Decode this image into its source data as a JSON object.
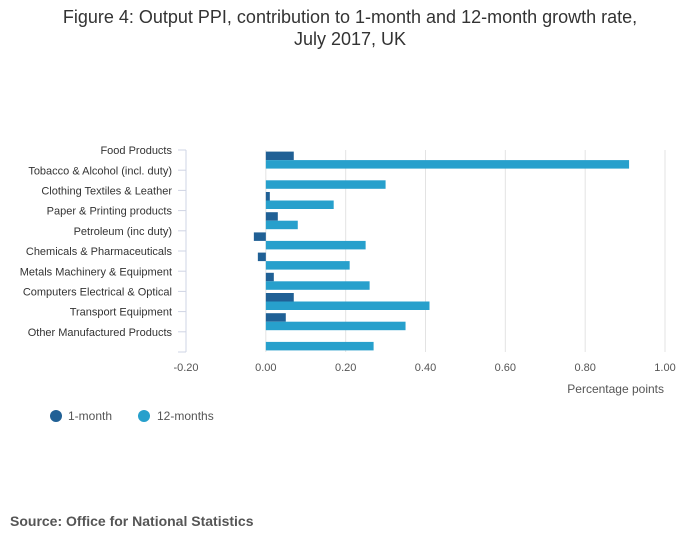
{
  "title_line1": "Figure 4: Output PPI, contribution to 1-month and 12-month growth rate,",
  "title_line2": "July 2017, UK",
  "source": "Source: Office for National Statistics",
  "chart_data": {
    "type": "bar",
    "orientation": "horizontal",
    "title": "Figure 4: Output PPI, contribution to 1-month and 12-month growth rate, July 2017, UK",
    "xlabel": "Percentage points",
    "ylabel": "",
    "xlim": [
      -0.2,
      1.0
    ],
    "xticks": [
      -0.2,
      0.0,
      0.2,
      0.4,
      0.6,
      0.8,
      1.0
    ],
    "xtick_labels": [
      "-0.20",
      "0.00",
      "0.20",
      "0.40",
      "0.60",
      "0.80",
      "1.00"
    ],
    "grid": true,
    "legend_position": "bottom-left",
    "categories": [
      "Food Products",
      "Tobacco & Alcohol (incl. duty)",
      "Clothing Textiles & Leather",
      "Paper & Printing products",
      "Petroleum (inc duty)",
      "Chemicals & Pharmaceuticals",
      "Metals Machinery & Equipment",
      "Computers Electrical & Optical",
      "Transport Equipment",
      "Other Manufactured Products"
    ],
    "series": [
      {
        "name": "1-month",
        "color": "#206095",
        "values": [
          0.07,
          0.0,
          0.01,
          0.03,
          -0.03,
          -0.02,
          0.02,
          0.07,
          0.05,
          0.0
        ]
      },
      {
        "name": "12-months",
        "color": "#27a0cc",
        "values": [
          0.91,
          0.3,
          0.17,
          0.08,
          0.25,
          0.21,
          0.26,
          0.41,
          0.35,
          0.27
        ]
      }
    ]
  }
}
